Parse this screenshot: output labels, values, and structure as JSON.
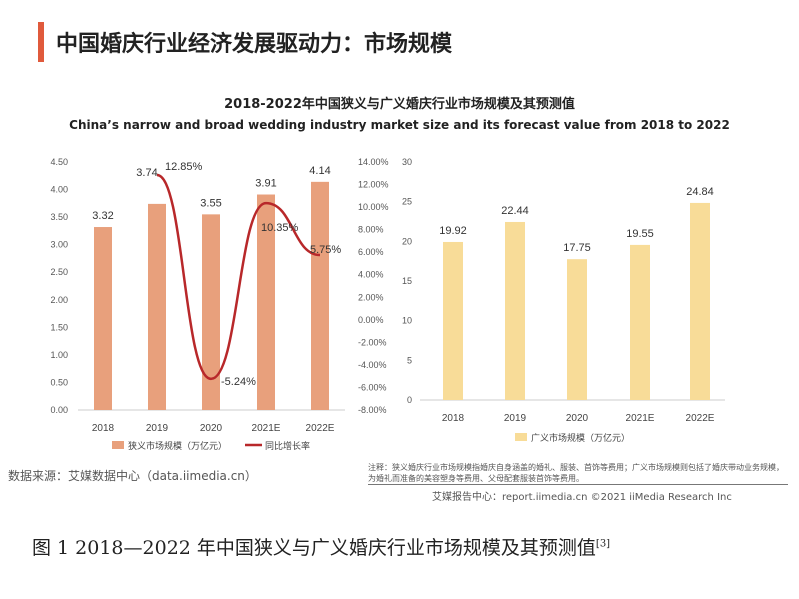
{
  "header": {
    "title": "中国婚庆行业经济发展驱动力：市场规模"
  },
  "chart_title": "2018-2022年中国狭义与广义婚庆行业市场规模及其预测值",
  "chart_subtitle": "China’s narrow and broad wedding industry market size and its forecast value from 2018 to 2022",
  "source": "数据来源：艾媒数据中心（data.iimedia.cn）",
  "note": "注释：狭义婚庆行业市场规模指婚庆自身涵盖的婚礼、服装、首饰等费用；广义市场规模则包括了婚庆带动业务规模，为婚礼而准备的美容塑身等费用、父母配套服装首饰等费用。",
  "copyright": "艾媒报告中心：report.iimedia.cn ©2021 iiMedia Research Inc",
  "caption": "图 1  2018—2022 年中国狭义与广义婚庆行业市场规模及其预测值",
  "caption_ref": "[3]",
  "chart_data": [
    {
      "type": "bar+line",
      "categories": [
        "2018",
        "2019",
        "2020",
        "2021E",
        "2022E"
      ],
      "series": [
        {
          "name": "狭义市场规模（万亿元）",
          "type": "bar",
          "axis": "left",
          "values": [
            3.32,
            3.74,
            3.55,
            3.91,
            4.14
          ],
          "labels": [
            "3.32",
            "3.74",
            "3.55",
            "3.91",
            "4.14"
          ],
          "color": "#e8a07c"
        },
        {
          "name": "同比增长率",
          "type": "line",
          "axis": "right",
          "values": [
            null,
            12.85,
            -5.24,
            10.35,
            5.75
          ],
          "labels": [
            "",
            "12.85%",
            "-5.24%",
            "10.35%",
            "5.75%"
          ],
          "color": "#b8282a"
        }
      ],
      "ylim": [
        0,
        4.5
      ],
      "yticks": [
        "0.00",
        "0.50",
        "1.00",
        "1.50",
        "2.00",
        "2.50",
        "3.00",
        "3.50",
        "4.00",
        "4.50"
      ],
      "y2lim": [
        -8,
        14
      ],
      "y2ticks": [
        "-8.00%",
        "-6.00%",
        "-4.00%",
        "-2.00%",
        "0.00%",
        "2.00%",
        "4.00%",
        "6.00%",
        "8.00%",
        "10.00%",
        "12.00%",
        "14.00%"
      ],
      "legend": "bottom",
      "grid": false
    },
    {
      "type": "bar",
      "categories": [
        "2018",
        "2019",
        "2020",
        "2021E",
        "2022E"
      ],
      "series": [
        {
          "name": "广义市场规模（万亿元）",
          "values": [
            19.92,
            22.44,
            17.75,
            19.55,
            24.84
          ],
          "labels": [
            "19.92",
            "22.44",
            "17.75",
            "19.55",
            "24.84"
          ],
          "color": "#f8dc98"
        }
      ],
      "ylim": [
        0,
        30
      ],
      "yticks": [
        "0",
        "5",
        "10",
        "15",
        "20",
        "25",
        "30"
      ],
      "legend": "bottom",
      "grid": false
    }
  ]
}
